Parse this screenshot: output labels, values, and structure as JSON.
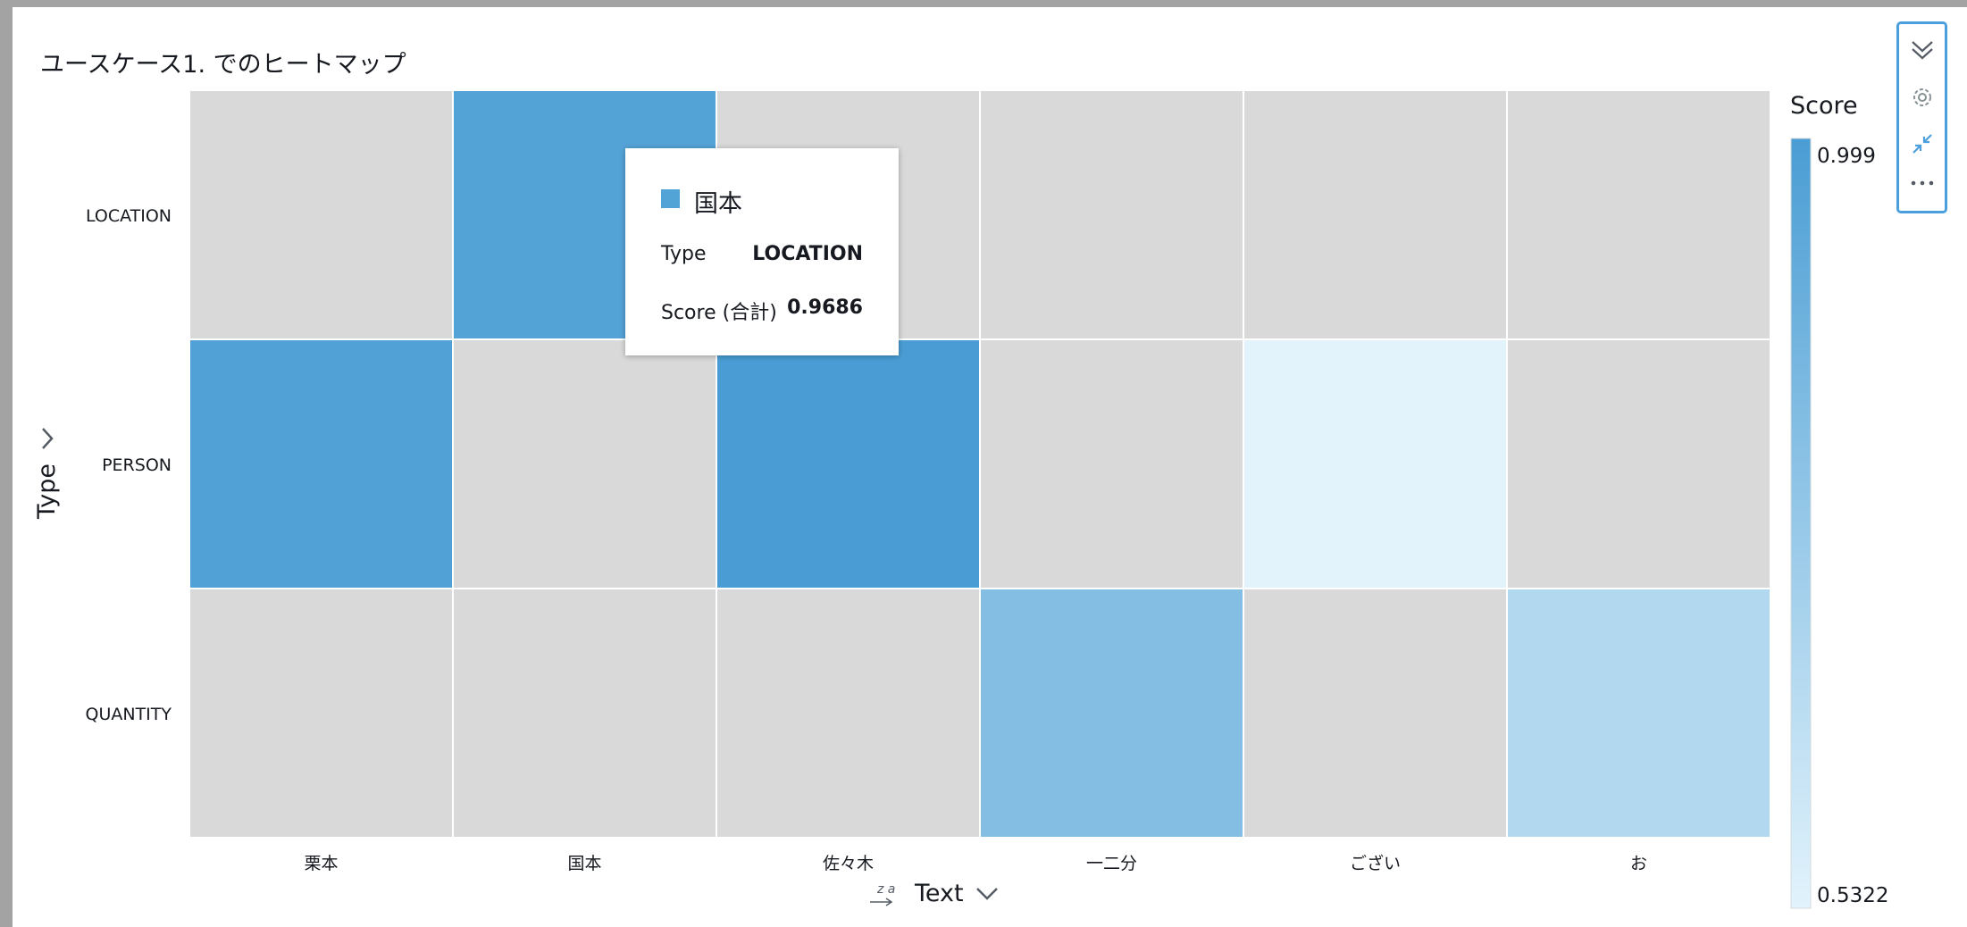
{
  "chart_data": {
    "type": "heatmap",
    "title": "ユースケース1. でのヒートマップ",
    "xlabel": "Text",
    "ylabel": "Type",
    "x_categories": [
      "栗本",
      "国本",
      "佐々木",
      "一二分",
      "ござい",
      "お"
    ],
    "y_categories": [
      "LOCATION",
      "PERSON",
      "QUANTITY"
    ],
    "values": [
      [
        null,
        0.9686,
        null,
        null,
        null,
        null
      ],
      [
        0.975,
        null,
        0.999,
        null,
        0.5322,
        null
      ],
      [
        null,
        null,
        null,
        0.82,
        null,
        0.68
      ]
    ],
    "empty_cell_color": "#d9d9d9",
    "legend": {
      "title": "Score",
      "max": 0.999,
      "min": 0.5322,
      "max_label": "0.999",
      "min_label": "0.5322",
      "color_max": "#4a9dd4",
      "color_min": "#e2f3fc",
      "placement": "right"
    }
  },
  "tooltip": {
    "series": "国本",
    "swatch_color": "#52a3d6",
    "rows": [
      {
        "key": "Type",
        "value": "LOCATION"
      },
      {
        "key": "Score (合計)",
        "value": "0.9686"
      }
    ]
  },
  "toolbar": {
    "icons": [
      "collapse-chevrons-icon",
      "settings-gear-icon",
      "minimize-arrows-icon",
      "more-options-icon"
    ],
    "accent_color": "#4a9fdc"
  }
}
